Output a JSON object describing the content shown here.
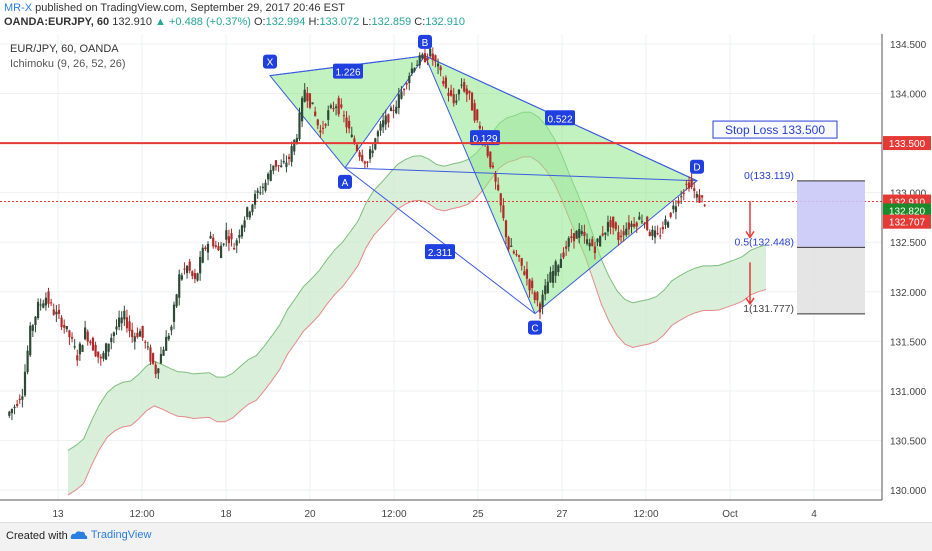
{
  "header": {
    "user": "MR-X",
    "published": "published on TradingView.com, September 29, 2017 20:46 EST",
    "symbol_line": "OANDA:EURJPY, 60",
    "last": "132.910",
    "change": "▲ +0.488 (+0.37%)",
    "o_label": "O:",
    "o_val": "132.994",
    "h_label": "H:",
    "h_val": "133.072",
    "l_label": "L:",
    "l_val": "132.859",
    "c_label": "C:",
    "c_val": "132.910"
  },
  "legend": {
    "instrument": "EUR/JPY, 60, OANDA",
    "indicator": "Ichimoku (9, 26, 52, 26)"
  },
  "footer": {
    "created": "Created with",
    "brand": "TradingView"
  },
  "colors": {
    "candle_up": "#2e4a36",
    "candle_down": "#b02a2a",
    "pattern_fill": "#8ee88a",
    "pattern_edge": "#3a5be0",
    "stop_line": "#e53935",
    "cloud_green": "#c9e8c9",
    "cloud_red": "#f4c8c8",
    "price_tag_current": "#e53935",
    "price_tag_green": "#1b8a28"
  },
  "chart_data": {
    "type": "candlestick",
    "ylim": [
      129.9,
      134.6
    ],
    "yticks": [
      "134.500",
      "134.000",
      "133.500",
      "133.000",
      "132.500",
      "132.000",
      "131.500",
      "131.000",
      "130.500",
      "130.000"
    ],
    "ytick_values": [
      134.5,
      134.0,
      133.5,
      133.0,
      132.5,
      132.0,
      131.5,
      131.0,
      130.5,
      130.0
    ],
    "xticks": [
      "13",
      "12:00",
      "18",
      "20",
      "12:00",
      "25",
      "27",
      "12:00",
      "Oct",
      "4"
    ],
    "price_path": [
      130.75,
      130.85,
      131.0,
      131.6,
      131.85,
      131.95,
      131.8,
      131.7,
      131.55,
      131.35,
      131.6,
      131.45,
      131.3,
      131.5,
      131.65,
      131.75,
      131.55,
      131.6,
      131.4,
      131.2,
      131.45,
      131.65,
      132.15,
      132.25,
      132.1,
      132.4,
      132.55,
      132.4,
      132.6,
      132.45,
      132.7,
      132.85,
      133.0,
      133.1,
      133.3,
      133.25,
      133.35,
      133.6,
      134.05,
      133.85,
      133.6,
      133.8,
      133.9,
      133.75,
      133.55,
      133.4,
      133.3,
      133.55,
      133.7,
      133.8,
      133.95,
      134.15,
      134.3,
      134.35,
      134.4,
      134.25,
      134.05,
      133.9,
      134.1,
      133.95,
      133.7,
      133.5,
      133.2,
      132.85,
      132.45,
      132.35,
      132.2,
      132.0,
      131.85,
      132.1,
      132.25,
      132.4,
      132.55,
      132.6,
      132.5,
      132.45,
      132.6,
      132.7,
      132.55,
      132.65,
      132.7,
      132.75,
      132.6,
      132.55,
      132.7,
      132.85,
      133.0,
      133.1,
      132.95,
      132.91
    ],
    "pattern": {
      "points": [
        {
          "label": "X",
          "price": 134.18
        },
        {
          "label": "A",
          "price": 133.25
        },
        {
          "label": "B",
          "price": 134.38
        },
        {
          "label": "C",
          "price": 131.78
        },
        {
          "label": "D",
          "price": 133.12
        }
      ],
      "ratios": [
        "1.226",
        "0.129",
        "2.311",
        "0.522"
      ]
    },
    "stop_loss": {
      "label": "Stop Loss 133.500",
      "price": 133.5
    },
    "targets": [
      {
        "label": "0(133.119)",
        "price": 133.119
      },
      {
        "label": "0.5(132.448)",
        "price": 132.448
      },
      {
        "label": "1(131.777)",
        "price": 131.777
      }
    ],
    "price_tags": [
      {
        "label": "133.500",
        "price": 133.5,
        "kind": "stop"
      },
      {
        "label": "132.910",
        "price": 132.91,
        "kind": "current"
      },
      {
        "label": "132.820",
        "price": 132.82,
        "kind": "green"
      },
      {
        "label": "132.707",
        "price": 132.707,
        "kind": "current"
      }
    ]
  }
}
